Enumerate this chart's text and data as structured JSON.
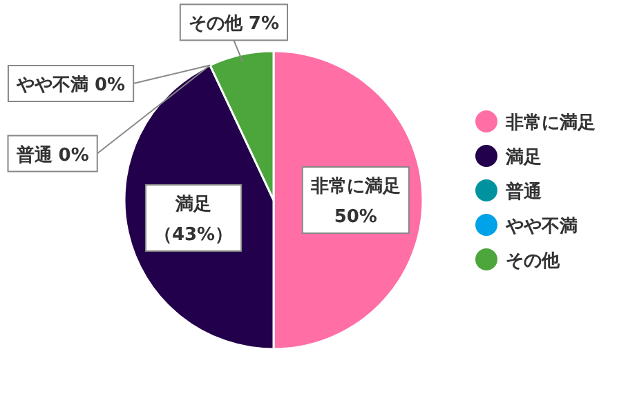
{
  "chart_data": {
    "type": "pie",
    "categories": [
      "非常に満足",
      "満足",
      "普通",
      "やや不満",
      "その他"
    ],
    "values": [
      50,
      43,
      0,
      0,
      7
    ],
    "colors": [
      "#ff6fa6",
      "#22004b",
      "#00939f",
      "#00a2e8",
      "#4ca63b"
    ],
    "value_labels": [
      "非常に満足50%",
      "満足（43%）",
      "普通 0%",
      "やや不満 0%",
      "その他 7%"
    ],
    "legend": "right"
  }
}
